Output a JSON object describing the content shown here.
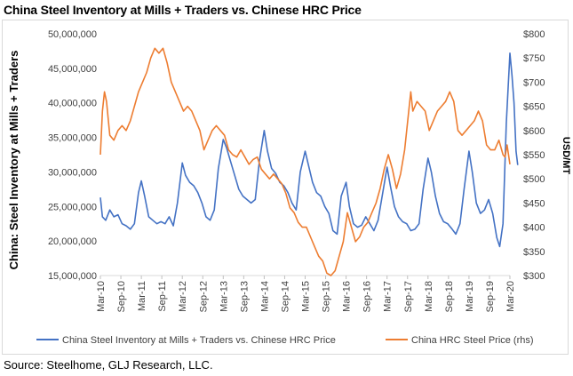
{
  "title": "China Steel Inventory at Mills + Traders vs. Chinese HRC Price",
  "source": "Source: Steelhome, GLJ Research, LLC.",
  "chart_data": {
    "type": "line",
    "ylabel": "China: Steel Inventory at Mills + Traders",
    "y2label": "USD/MT",
    "ylim": [
      15000000,
      50000000
    ],
    "y2lim": [
      300,
      800
    ],
    "yticks": [
      "50,000,000",
      "45,000,000",
      "40,000,000",
      "35,000,000",
      "30,000,000",
      "25,000,000",
      "20,000,000",
      "15,000,000"
    ],
    "y2ticks": [
      "$800",
      "$750",
      "$700",
      "$650",
      "$600",
      "$550",
      "$500",
      "$450",
      "$400",
      "$350",
      "$300"
    ],
    "xticks": [
      "Mar-10",
      "Sep-10",
      "Mar-11",
      "Sep-11",
      "Mar-12",
      "Sep-12",
      "Mar-13",
      "Sep-13",
      "Mar-14",
      "Sep-14",
      "Mar-15",
      "Sep-15",
      "Mar-16",
      "Sep-16",
      "Mar-17",
      "Sep-17",
      "Mar-18",
      "Sep-18",
      "Mar-19",
      "Sep-19",
      "Mar-20"
    ],
    "series": [
      {
        "name": "China Steel Inventory at Mills + Traders vs. Chinese HRC Price",
        "axis": "left",
        "color": "#4472c4",
        "points": [
          [
            2010.17,
            26300000
          ],
          [
            2010.22,
            23500000
          ],
          [
            2010.3,
            23000000
          ],
          [
            2010.4,
            24500000
          ],
          [
            2010.5,
            23500000
          ],
          [
            2010.6,
            23800000
          ],
          [
            2010.7,
            22500000
          ],
          [
            2010.8,
            22200000
          ],
          [
            2010.9,
            21700000
          ],
          [
            2011.0,
            22500000
          ],
          [
            2011.1,
            27000000
          ],
          [
            2011.17,
            28700000
          ],
          [
            2011.25,
            26500000
          ],
          [
            2011.35,
            23500000
          ],
          [
            2011.45,
            23000000
          ],
          [
            2011.55,
            22500000
          ],
          [
            2011.65,
            22800000
          ],
          [
            2011.75,
            22500000
          ],
          [
            2011.85,
            23500000
          ],
          [
            2011.95,
            22200000
          ],
          [
            2012.05,
            25500000
          ],
          [
            2012.17,
            31300000
          ],
          [
            2012.25,
            29500000
          ],
          [
            2012.35,
            28500000
          ],
          [
            2012.45,
            28000000
          ],
          [
            2012.55,
            27000000
          ],
          [
            2012.65,
            25500000
          ],
          [
            2012.75,
            23500000
          ],
          [
            2012.85,
            23000000
          ],
          [
            2012.95,
            24500000
          ],
          [
            2013.05,
            30500000
          ],
          [
            2013.17,
            34700000
          ],
          [
            2013.25,
            33500000
          ],
          [
            2013.35,
            31500000
          ],
          [
            2013.45,
            29500000
          ],
          [
            2013.55,
            27500000
          ],
          [
            2013.65,
            26500000
          ],
          [
            2013.75,
            26000000
          ],
          [
            2013.85,
            25500000
          ],
          [
            2013.95,
            26000000
          ],
          [
            2014.05,
            31500000
          ],
          [
            2014.17,
            36000000
          ],
          [
            2014.25,
            33000000
          ],
          [
            2014.35,
            30500000
          ],
          [
            2014.45,
            29800000
          ],
          [
            2014.55,
            28500000
          ],
          [
            2014.65,
            28000000
          ],
          [
            2014.75,
            27000000
          ],
          [
            2014.85,
            25500000
          ],
          [
            2014.95,
            24500000
          ],
          [
            2015.05,
            30000000
          ],
          [
            2015.17,
            33000000
          ],
          [
            2015.25,
            31000000
          ],
          [
            2015.35,
            28500000
          ],
          [
            2015.45,
            27000000
          ],
          [
            2015.55,
            26500000
          ],
          [
            2015.65,
            25000000
          ],
          [
            2015.75,
            24000000
          ],
          [
            2015.85,
            21500000
          ],
          [
            2015.95,
            21000000
          ],
          [
            2016.05,
            26500000
          ],
          [
            2016.17,
            28500000
          ],
          [
            2016.25,
            25000000
          ],
          [
            2016.35,
            22500000
          ],
          [
            2016.45,
            22000000
          ],
          [
            2016.55,
            22300000
          ],
          [
            2016.65,
            23500000
          ],
          [
            2016.75,
            22500000
          ],
          [
            2016.85,
            21500000
          ],
          [
            2016.95,
            23000000
          ],
          [
            2017.05,
            26500000
          ],
          [
            2017.17,
            30700000
          ],
          [
            2017.25,
            28000000
          ],
          [
            2017.35,
            25000000
          ],
          [
            2017.45,
            23500000
          ],
          [
            2017.55,
            22800000
          ],
          [
            2017.65,
            22500000
          ],
          [
            2017.75,
            21500000
          ],
          [
            2017.85,
            21700000
          ],
          [
            2017.95,
            22500000
          ],
          [
            2018.05,
            27500000
          ],
          [
            2018.17,
            32000000
          ],
          [
            2018.25,
            30000000
          ],
          [
            2018.35,
            26500000
          ],
          [
            2018.45,
            24000000
          ],
          [
            2018.55,
            22800000
          ],
          [
            2018.65,
            22500000
          ],
          [
            2018.75,
            21800000
          ],
          [
            2018.85,
            21000000
          ],
          [
            2018.95,
            22500000
          ],
          [
            2019.05,
            27500000
          ],
          [
            2019.17,
            33000000
          ],
          [
            2019.25,
            30000000
          ],
          [
            2019.35,
            25500000
          ],
          [
            2019.45,
            24000000
          ],
          [
            2019.55,
            24500000
          ],
          [
            2019.65,
            26000000
          ],
          [
            2019.75,
            24000000
          ],
          [
            2019.85,
            20500000
          ],
          [
            2019.92,
            19200000
          ],
          [
            2020.0,
            22500000
          ],
          [
            2020.08,
            37000000
          ],
          [
            2020.17,
            47200000
          ],
          [
            2020.22,
            44000000
          ],
          [
            2020.27,
            40000000
          ],
          [
            2020.32,
            33000000
          ],
          [
            2020.36,
            31000000
          ]
        ]
      },
      {
        "name": "China HRC Steel Price (rhs)",
        "axis": "right",
        "color": "#ed7d31",
        "points": [
          [
            2010.17,
            550
          ],
          [
            2010.22,
            640
          ],
          [
            2010.27,
            680
          ],
          [
            2010.32,
            660
          ],
          [
            2010.4,
            590
          ],
          [
            2010.5,
            580
          ],
          [
            2010.6,
            600
          ],
          [
            2010.7,
            610
          ],
          [
            2010.8,
            600
          ],
          [
            2010.9,
            620
          ],
          [
            2011.0,
            650
          ],
          [
            2011.1,
            680
          ],
          [
            2011.2,
            700
          ],
          [
            2011.3,
            720
          ],
          [
            2011.4,
            750
          ],
          [
            2011.5,
            770
          ],
          [
            2011.6,
            760
          ],
          [
            2011.7,
            770
          ],
          [
            2011.8,
            740
          ],
          [
            2011.9,
            700
          ],
          [
            2012.0,
            680
          ],
          [
            2012.1,
            660
          ],
          [
            2012.2,
            640
          ],
          [
            2012.3,
            650
          ],
          [
            2012.4,
            640
          ],
          [
            2012.5,
            620
          ],
          [
            2012.6,
            600
          ],
          [
            2012.7,
            560
          ],
          [
            2012.8,
            580
          ],
          [
            2012.9,
            600
          ],
          [
            2013.0,
            610
          ],
          [
            2013.1,
            600
          ],
          [
            2013.2,
            590
          ],
          [
            2013.3,
            560
          ],
          [
            2013.4,
            550
          ],
          [
            2013.5,
            545
          ],
          [
            2013.6,
            560
          ],
          [
            2013.7,
            545
          ],
          [
            2013.8,
            530
          ],
          [
            2013.9,
            540
          ],
          [
            2014.0,
            545
          ],
          [
            2014.1,
            520
          ],
          [
            2014.2,
            510
          ],
          [
            2014.3,
            500
          ],
          [
            2014.4,
            510
          ],
          [
            2014.5,
            500
          ],
          [
            2014.6,
            490
          ],
          [
            2014.7,
            470
          ],
          [
            2014.8,
            440
          ],
          [
            2014.9,
            430
          ],
          [
            2015.0,
            410
          ],
          [
            2015.1,
            400
          ],
          [
            2015.2,
            400
          ],
          [
            2015.3,
            380
          ],
          [
            2015.4,
            360
          ],
          [
            2015.5,
            340
          ],
          [
            2015.6,
            330
          ],
          [
            2015.7,
            305
          ],
          [
            2015.8,
            300
          ],
          [
            2015.9,
            310
          ],
          [
            2016.0,
            340
          ],
          [
            2016.1,
            370
          ],
          [
            2016.2,
            430
          ],
          [
            2016.3,
            400
          ],
          [
            2016.4,
            370
          ],
          [
            2016.5,
            380
          ],
          [
            2016.6,
            400
          ],
          [
            2016.7,
            410
          ],
          [
            2016.8,
            430
          ],
          [
            2016.9,
            450
          ],
          [
            2017.0,
            480
          ],
          [
            2017.1,
            520
          ],
          [
            2017.2,
            550
          ],
          [
            2017.3,
            520
          ],
          [
            2017.4,
            480
          ],
          [
            2017.5,
            510
          ],
          [
            2017.6,
            560
          ],
          [
            2017.7,
            640
          ],
          [
            2017.75,
            680
          ],
          [
            2017.8,
            640
          ],
          [
            2017.9,
            660
          ],
          [
            2018.0,
            650
          ],
          [
            2018.1,
            640
          ],
          [
            2018.2,
            600
          ],
          [
            2018.3,
            620
          ],
          [
            2018.4,
            640
          ],
          [
            2018.5,
            650
          ],
          [
            2018.6,
            660
          ],
          [
            2018.7,
            680
          ],
          [
            2018.8,
            660
          ],
          [
            2018.9,
            600
          ],
          [
            2019.0,
            590
          ],
          [
            2019.1,
            600
          ],
          [
            2019.2,
            610
          ],
          [
            2019.3,
            620
          ],
          [
            2019.4,
            640
          ],
          [
            2019.5,
            620
          ],
          [
            2019.6,
            570
          ],
          [
            2019.7,
            560
          ],
          [
            2019.8,
            560
          ],
          [
            2019.9,
            580
          ],
          [
            2020.0,
            550
          ],
          [
            2020.05,
            545
          ],
          [
            2020.1,
            570
          ],
          [
            2020.17,
            530
          ]
        ]
      }
    ]
  },
  "legend": {
    "left_item": "China Steel Inventory at Mills + Traders vs. Chinese HRC Price",
    "right_item": "China HRC Steel Price (rhs)"
  }
}
